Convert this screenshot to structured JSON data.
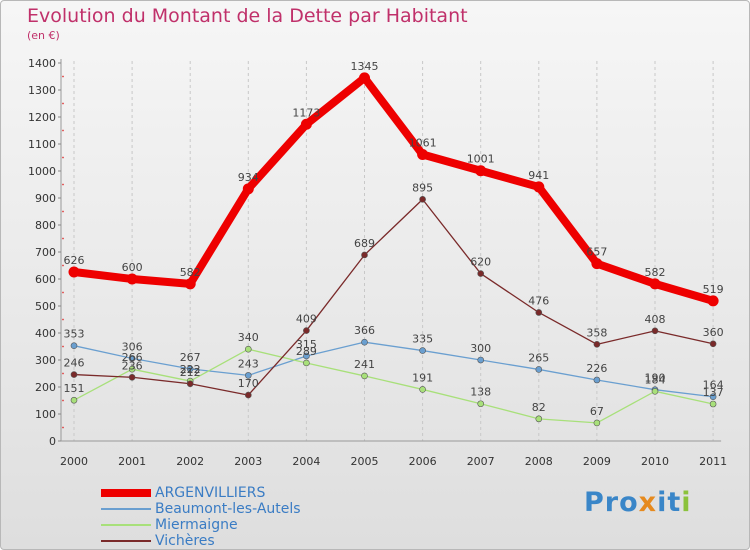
{
  "chart_data": {
    "type": "line",
    "title": "Evolution du Montant de la Dette par Habitant",
    "subtitle": "(en €)",
    "xlabel": "",
    "ylabel": "",
    "categories": [
      "2000",
      "2001",
      "2002",
      "2003",
      "2004",
      "2005",
      "2006",
      "2007",
      "2008",
      "2009",
      "2010",
      "2011"
    ],
    "ylim": [
      0,
      1400
    ],
    "yticks": [
      "0",
      "100",
      "200",
      "300",
      "400",
      "500",
      "600",
      "700",
      "800",
      "900",
      "1000",
      "1100",
      "1200",
      "1300",
      "1400"
    ],
    "grid": "vertical-dashed",
    "legend_position": "bottom-left",
    "series": [
      {
        "name": "ARGENVILLIERS",
        "color": "#ee0000",
        "values": [
          626,
          600,
          582,
          934,
          1173,
          1345,
          1061,
          1001,
          941,
          657,
          582,
          519
        ]
      },
      {
        "name": "Beaumont-les-Autels",
        "color": "#6a9fd0",
        "values": [
          353,
          306,
          267,
          243,
          315,
          366,
          335,
          300,
          265,
          226,
          190,
          164
        ]
      },
      {
        "name": "Miermaigne",
        "color": "#a8e07a",
        "values": [
          151,
          266,
          222,
          340,
          289,
          241,
          191,
          138,
          82,
          67,
          184,
          137
        ]
      },
      {
        "name": "Vichères",
        "color": "#7a2a2a",
        "values": [
          246,
          236,
          212,
          170,
          409,
          689,
          895,
          620,
          476,
          358,
          408,
          360
        ]
      }
    ],
    "data_labels": [
      [
        "626",
        "600",
        "582",
        "934",
        "1173",
        "1345",
        "1061",
        "1001",
        "941",
        "657",
        "582",
        "519"
      ],
      [
        "353",
        "306",
        "267",
        "243",
        "315",
        "366",
        "335",
        "300",
        "265",
        "226",
        "190",
        "164"
      ],
      [
        "151",
        "266",
        "222",
        "340",
        "289",
        "241",
        "191",
        "138",
        "82",
        "67",
        "184",
        "137"
      ],
      [
        "246",
        "236",
        "212",
        "170",
        "409",
        "689",
        "895",
        "620",
        "476",
        "358",
        "408",
        "360"
      ]
    ]
  },
  "logo": {
    "text": "Proxiti",
    "parts": [
      "Pro",
      "x",
      "it",
      "i"
    ]
  }
}
